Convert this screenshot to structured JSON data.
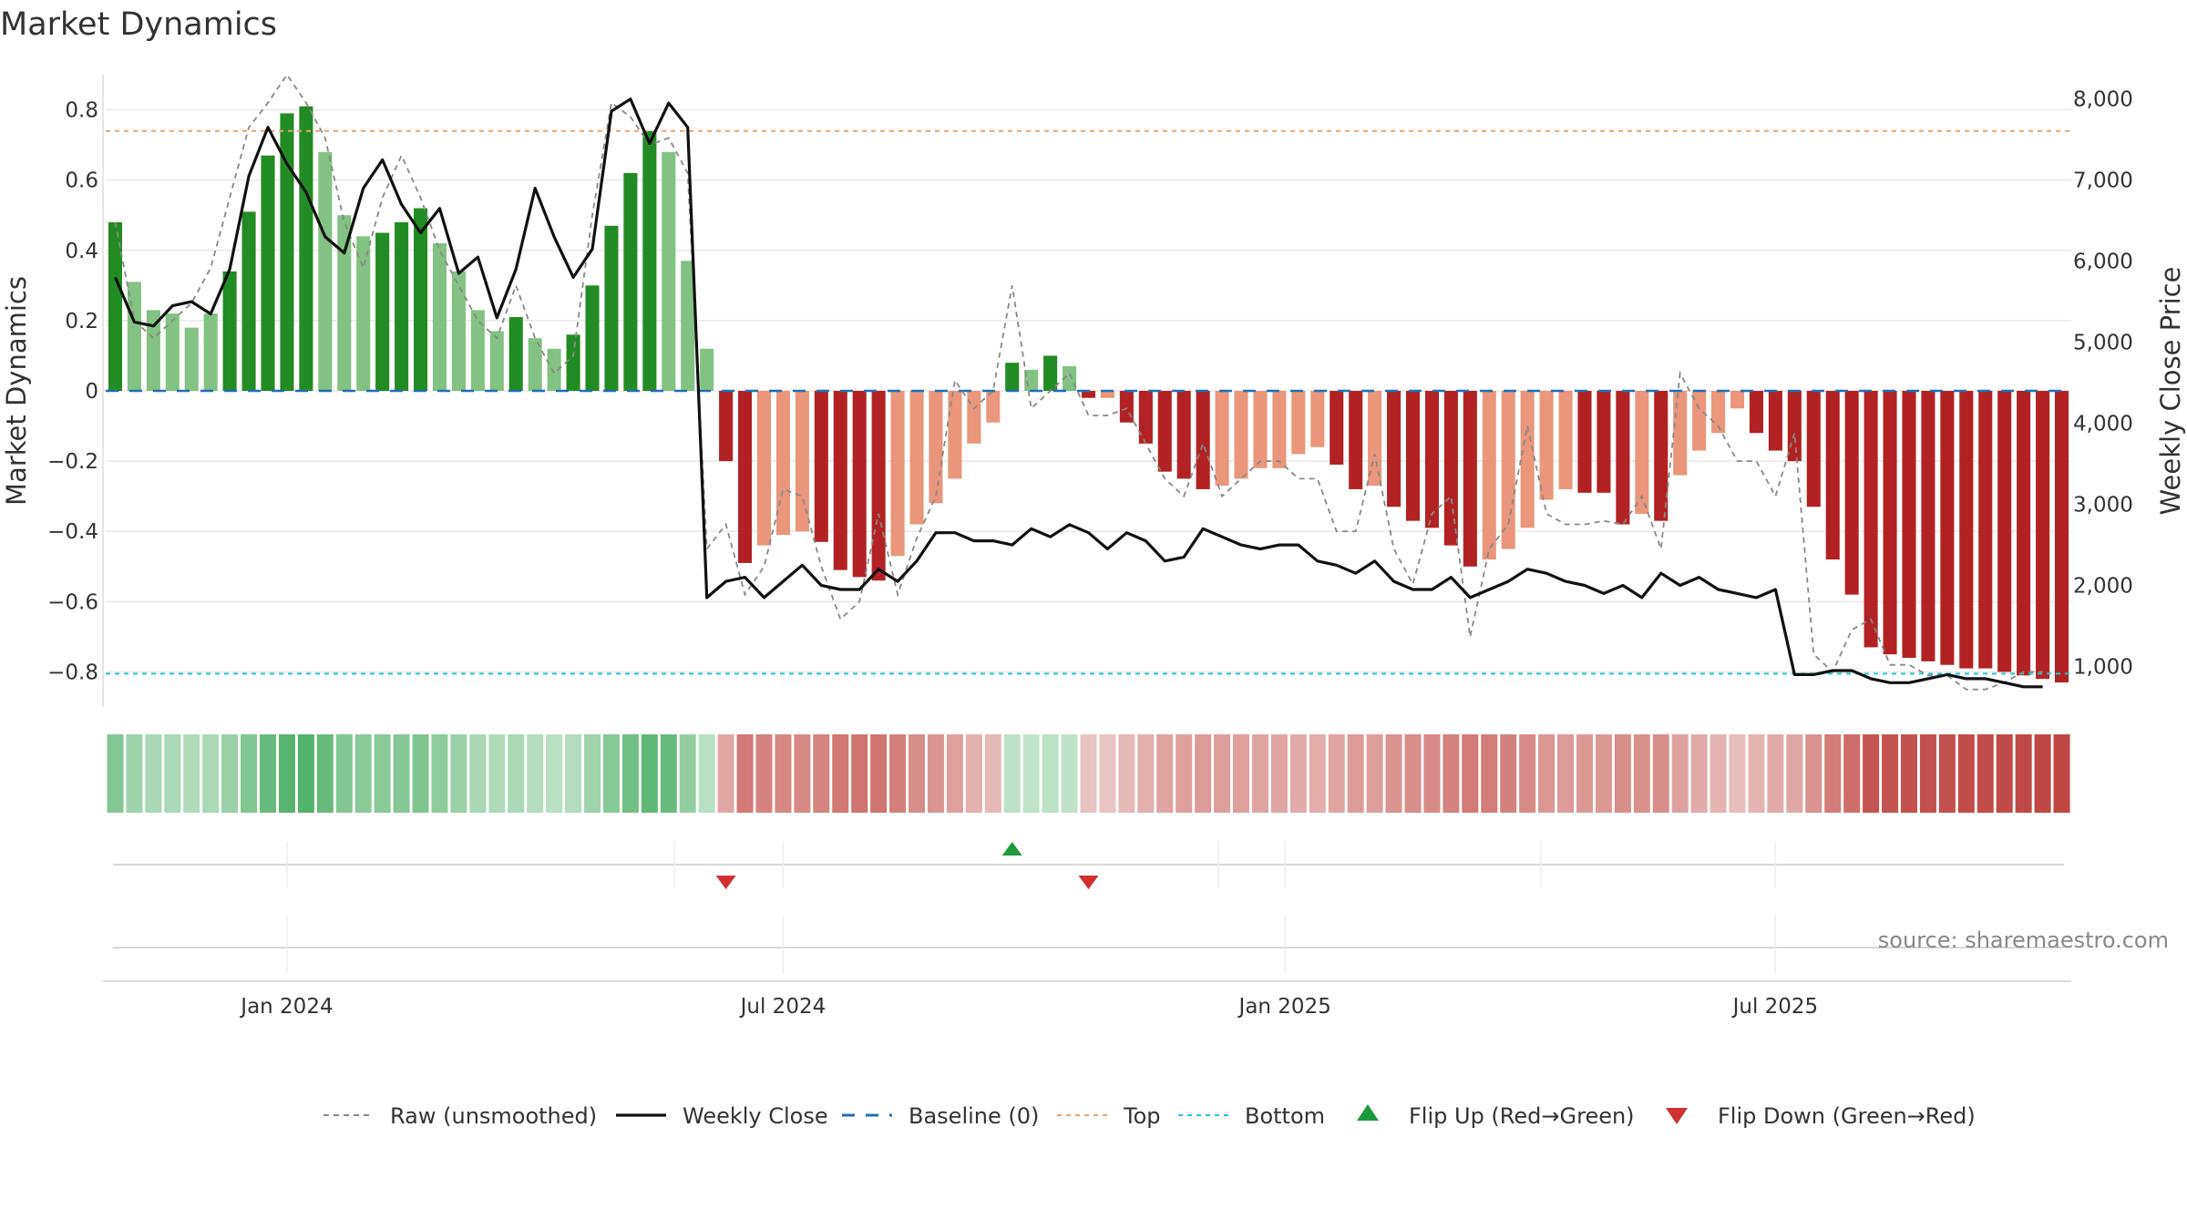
{
  "title": "Market Dynamics",
  "source": "source: sharemaestro.com",
  "colors": {
    "strong_green": "#238B23",
    "light_green": "#82C282",
    "strong_red": "#B22222",
    "light_red": "#E9967A",
    "close_line": "#111111",
    "raw_line": "#888888",
    "baseline": "#1F6FB4",
    "top_line": "#E8A46C",
    "bottom_line": "#2BC4D3",
    "flip_up": "#1E9A3C",
    "flip_down": "#D03030"
  },
  "chart_data": {
    "type": "bar",
    "title": "Market Dynamics",
    "ylabel": "Market Dynamics",
    "y2label": "Weekly Close Price",
    "ylim": [
      -0.9,
      0.9
    ],
    "y2lim": [
      500,
      8300
    ],
    "yticks": [
      {
        "value": 0.8,
        "label": "0.8"
      },
      {
        "value": 0.6,
        "label": "0.6"
      },
      {
        "value": 0.4,
        "label": "0.4"
      },
      {
        "value": 0.2,
        "label": "0.2"
      },
      {
        "value": 0,
        "label": "0"
      },
      {
        "value": -0.2,
        "label": "−0.2"
      },
      {
        "value": -0.4,
        "label": "−0.4"
      },
      {
        "value": -0.6,
        "label": "−0.6"
      },
      {
        "value": -0.8,
        "label": "−0.8"
      }
    ],
    "y2ticks": [
      {
        "value": 8000,
        "label": "8,000"
      },
      {
        "value": 7000,
        "label": "7,000"
      },
      {
        "value": 6000,
        "label": "6,000"
      },
      {
        "value": 5000,
        "label": "5,000"
      },
      {
        "value": 4000,
        "label": "4,000"
      },
      {
        "value": 3000,
        "label": "3,000"
      },
      {
        "value": 2000,
        "label": "2,000"
      },
      {
        "value": 1000,
        "label": "1,000"
      }
    ],
    "xticks": [
      {
        "week": 9.5,
        "label": "Jan 2024"
      },
      {
        "week": 35.5,
        "label": "Jul 2024"
      },
      {
        "week": 61.8,
        "label": "Jan 2025"
      },
      {
        "week": 87.5,
        "label": "Jul 2025"
      }
    ],
    "top_level": 0.74,
    "bottom_level": -0.805,
    "baseline": 0,
    "momentum": [
      0.48,
      0.31,
      0.23,
      0.22,
      0.18,
      0.22,
      0.34,
      0.51,
      0.67,
      0.79,
      0.81,
      0.68,
      0.5,
      0.44,
      0.45,
      0.48,
      0.52,
      0.42,
      0.34,
      0.23,
      0.17,
      0.21,
      0.15,
      0.12,
      0.16,
      0.3,
      0.47,
      0.62,
      0.74,
      0.68,
      0.37,
      0.12,
      -0.2,
      -0.49,
      -0.44,
      -0.41,
      -0.4,
      -0.43,
      -0.51,
      -0.53,
      -0.54,
      -0.47,
      -0.38,
      -0.32,
      -0.25,
      -0.15,
      -0.09,
      0.08,
      0.06,
      0.1,
      0.07,
      -0.02,
      -0.02,
      -0.09,
      -0.15,
      -0.23,
      -0.25,
      -0.28,
      -0.27,
      -0.25,
      -0.22,
      -0.22,
      -0.18,
      -0.16,
      -0.21,
      -0.28,
      -0.27,
      -0.33,
      -0.37,
      -0.39,
      -0.44,
      -0.5,
      -0.48,
      -0.45,
      -0.39,
      -0.31,
      -0.28,
      -0.29,
      -0.29,
      -0.38,
      -0.35,
      -0.37,
      -0.24,
      -0.17,
      -0.12,
      -0.05,
      -0.12,
      -0.17,
      -0.2,
      -0.33,
      -0.48,
      -0.58,
      -0.73,
      -0.75,
      -0.76,
      -0.77,
      -0.78,
      -0.79,
      -0.79,
      -0.8,
      -0.81,
      -0.82,
      -0.83
    ],
    "strength": [
      "strong",
      "light",
      "light",
      "light",
      "light",
      "light",
      "strong",
      "strong",
      "strong",
      "strong",
      "strong",
      "light",
      "light",
      "light",
      "strong",
      "strong",
      "strong",
      "light",
      "light",
      "light",
      "light",
      "strong",
      "light",
      "light",
      "strong",
      "strong",
      "strong",
      "strong",
      "strong",
      "light",
      "light",
      "light",
      "strong",
      "strong",
      "light",
      "light",
      "light",
      "strong",
      "strong",
      "strong",
      "strong",
      "light",
      "light",
      "light",
      "light",
      "light",
      "light",
      "strong",
      "light",
      "strong",
      "light",
      "strong",
      "light",
      "strong",
      "strong",
      "strong",
      "strong",
      "strong",
      "light",
      "light",
      "light",
      "light",
      "light",
      "light",
      "strong",
      "strong",
      "light",
      "strong",
      "strong",
      "strong",
      "strong",
      "strong",
      "light",
      "light",
      "light",
      "light",
      "light",
      "strong",
      "strong",
      "strong",
      "light",
      "strong",
      "light",
      "light",
      "light",
      "light",
      "strong",
      "strong",
      "strong",
      "strong",
      "strong",
      "strong",
      "strong",
      "strong",
      "strong",
      "strong",
      "strong",
      "strong",
      "strong",
      "strong",
      "strong",
      "strong",
      "strong"
    ],
    "weekly_close": [
      5800,
      5250,
      5200,
      5450,
      5500,
      5350,
      5900,
      7050,
      7650,
      7200,
      6850,
      6300,
      6100,
      6900,
      7250,
      6700,
      6350,
      6650,
      5850,
      6050,
      5300,
      5900,
      6900,
      6300,
      5800,
      6150,
      7850,
      8000,
      7450,
      7950,
      7650,
      1850,
      2050,
      2100,
      1850,
      2050,
      2250,
      2000,
      1950,
      1950,
      2200,
      2050,
      2300,
      2650,
      2650,
      2550,
      2550,
      2500,
      2700,
      2600,
      2750,
      2650,
      2450,
      2650,
      2550,
      2300,
      2350,
      2700,
      2600,
      2500,
      2450,
      2500,
      2500,
      2300,
      2250,
      2150,
      2300,
      2050,
      1950,
      1950,
      2100,
      1850,
      1950,
      2050,
      2200,
      2150,
      2050,
      2000,
      1900,
      2000,
      1850,
      2150,
      2000,
      2100,
      1950,
      1900,
      1850,
      1950,
      900,
      900,
      950,
      950,
      850,
      800,
      800,
      850,
      900,
      850,
      850,
      800,
      750,
      750
    ],
    "raw": [
      0.48,
      0.2,
      0.15,
      0.2,
      0.25,
      0.35,
      0.55,
      0.75,
      0.82,
      0.9,
      0.82,
      0.72,
      0.48,
      0.35,
      0.55,
      0.67,
      0.55,
      0.4,
      0.3,
      0.2,
      0.15,
      0.3,
      0.15,
      0.05,
      0.1,
      0.5,
      0.82,
      0.78,
      0.7,
      0.72,
      0.62,
      -0.45,
      -0.38,
      -0.58,
      -0.5,
      -0.28,
      -0.3,
      -0.5,
      -0.65,
      -0.6,
      -0.35,
      -0.58,
      -0.42,
      -0.3,
      0.03,
      -0.05,
      0.0,
      0.3,
      -0.05,
      0.0,
      0.05,
      -0.07,
      -0.07,
      -0.05,
      -0.15,
      -0.25,
      -0.3,
      -0.15,
      -0.3,
      -0.25,
      -0.2,
      -0.2,
      -0.25,
      -0.25,
      -0.4,
      -0.4,
      -0.18,
      -0.45,
      -0.55,
      -0.35,
      -0.3,
      -0.7,
      -0.45,
      -0.38,
      -0.1,
      -0.35,
      -0.38,
      -0.38,
      -0.37,
      -0.38,
      -0.3,
      -0.45,
      0.05,
      -0.05,
      -0.1,
      -0.2,
      -0.2,
      -0.3,
      -0.12,
      -0.75,
      -0.8,
      -0.68,
      -0.65,
      -0.78,
      -0.78,
      -0.81,
      -0.81,
      -0.85,
      -0.85,
      -0.83,
      -0.8,
      -0.8
    ],
    "flips": [
      {
        "week": 32,
        "direction": "down"
      },
      {
        "week": 47,
        "direction": "up"
      },
      {
        "week": 51,
        "direction": "down"
      }
    ]
  },
  "legend": [
    {
      "label": "Raw (unsmoothed)",
      "kind": "dash-gray"
    },
    {
      "label": "Weekly Close",
      "kind": "solid-black"
    },
    {
      "label": "Baseline (0)",
      "kind": "dash-blue"
    },
    {
      "label": "Top",
      "kind": "dot-orange"
    },
    {
      "label": "Bottom",
      "kind": "dot-cyan"
    },
    {
      "label": "Flip Up (Red→Green)",
      "kind": "triangle-up"
    },
    {
      "label": "Flip Down (Green→Red)",
      "kind": "triangle-down"
    }
  ]
}
